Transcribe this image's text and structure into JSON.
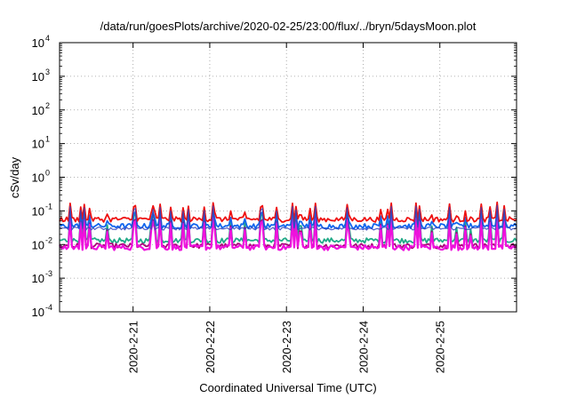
{
  "chart_data": {
    "type": "line",
    "title": "/data/run/goesPlots/archive/2020-02-25/23:00/flux/../bryn/5daysMoon.plot",
    "xlabel": "Coordinated Universal Time (UTC)",
    "ylabel": "cSv/day",
    "yscale": "log",
    "ylim": [
      0.0001,
      10000
    ],
    "y_ticks": [
      {
        "base": "10",
        "exp": "-4"
      },
      {
        "base": "10",
        "exp": "-3"
      },
      {
        "base": "10",
        "exp": "-2"
      },
      {
        "base": "10",
        "exp": "-1"
      },
      {
        "base": "10",
        "exp": "0"
      },
      {
        "base": "10",
        "exp": "1"
      },
      {
        "base": "10",
        "exp": "2"
      },
      {
        "base": "10",
        "exp": "3"
      },
      {
        "base": "10",
        "exp": "4"
      }
    ],
    "xlim": [
      "2020-02-20 01:00",
      "2020-02-26 00:00"
    ],
    "x_ticks": [
      "2020-2-21",
      "2020-2-22",
      "2020-2-23",
      "2020-2-24",
      "2020-2-25"
    ],
    "grid": true,
    "legend": "none",
    "colors": {
      "red": "#ee1111",
      "blue": "#1166ee",
      "green": "#22aa88",
      "magenta": "#ee11dd",
      "darkmagenta": "#aa0077",
      "navy": "#3344bb",
      "grid": "#999999"
    },
    "series": [
      {
        "color": "red",
        "baseline": 0.055,
        "description_free": true
      },
      {
        "color": "blue",
        "baseline": 0.035
      },
      {
        "color": "green",
        "baseline": 0.013
      },
      {
        "color": "darkmagenta",
        "baseline": 0.009
      },
      {
        "color": "magenta",
        "baseline": 0.008
      }
    ]
  }
}
